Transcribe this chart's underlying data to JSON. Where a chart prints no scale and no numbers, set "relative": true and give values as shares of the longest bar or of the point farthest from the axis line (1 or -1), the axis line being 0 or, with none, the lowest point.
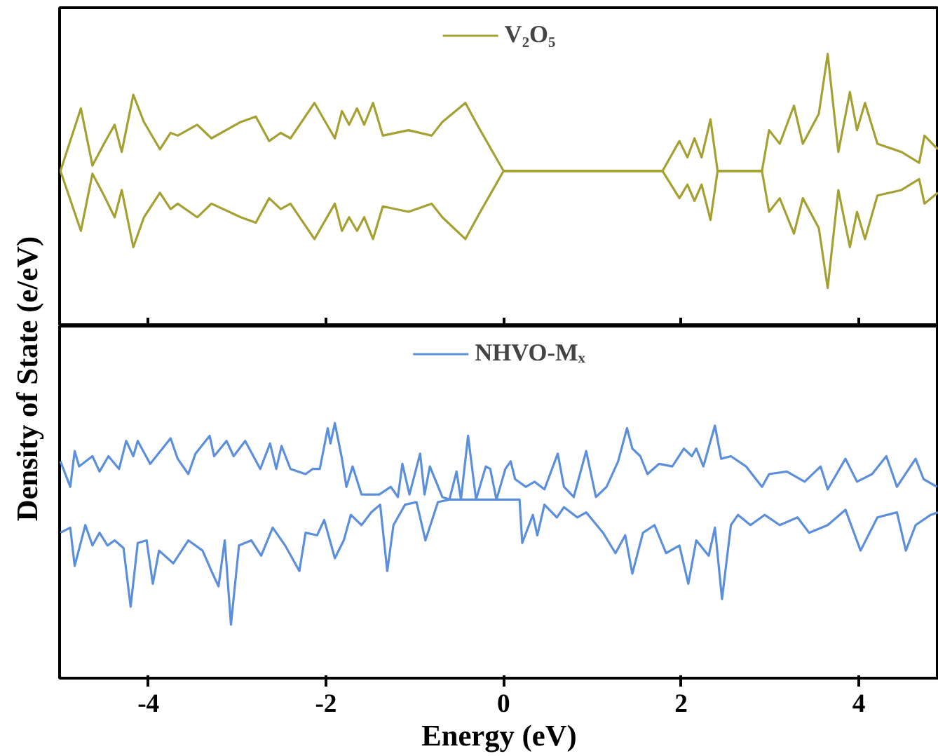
{
  "chart_data": [
    {
      "type": "line",
      "relative": true,
      "ylabel": "Density of State (e/eV)",
      "xlim": [
        -5,
        4.9
      ],
      "xticks": [
        -4,
        -2,
        0,
        2,
        4
      ],
      "tick_labels": false,
      "legend": "top",
      "series": [
        {
          "name": "V₂O₅",
          "color": "#a5a032",
          "x": [
            -4.99,
            -4.76,
            -4.63,
            -4.5,
            -4.38,
            -4.3,
            -4.17,
            -4.05,
            -3.87,
            -3.75,
            -3.67,
            -3.45,
            -3.29,
            -2.96,
            -2.79,
            -2.64,
            -2.51,
            -2.4,
            -2.13,
            -1.9,
            -1.82,
            -1.74,
            -1.65,
            -1.57,
            -1.47,
            -1.36,
            -1.07,
            -0.81,
            -0.69,
            -0.43,
            -0.28,
            0,
            1.79,
            1.98,
            2.07,
            2.15,
            2.23,
            2.33,
            2.41,
            2.91,
            2.99,
            3.11,
            3.27,
            3.37,
            3.55,
            3.65,
            3.77,
            3.9,
            3.98,
            4.07,
            4.21,
            4.48,
            4.68,
            4.74,
            4.89
          ],
          "values": [
            0.57,
            0.8,
            0.59,
            0.67,
            0.74,
            0.64,
            0.85,
            0.75,
            0.65,
            0.71,
            0.7,
            0.74,
            0.69,
            0.75,
            0.77,
            0.68,
            0.71,
            0.69,
            0.82,
            0.69,
            0.79,
            0.74,
            0.8,
            0.74,
            0.82,
            0.7,
            0.72,
            0.7,
            0.75,
            0.82,
            0.73,
            0.57,
            0.57,
            0.68,
            0.62,
            0.69,
            0.62,
            0.76,
            0.57,
            0.57,
            0.72,
            0.67,
            0.81,
            0.67,
            0.78,
            1,
            0.64,
            0.86,
            0.72,
            0.82,
            0.67,
            0.64,
            0.6,
            0.7,
            0.65
          ]
        },
        {
          "color": "#a5a032",
          "x": [
            -4.99,
            -4.76,
            -4.63,
            -4.5,
            -4.38,
            -4.3,
            -4.17,
            -4.05,
            -3.87,
            -3.75,
            -3.67,
            -3.45,
            -3.29,
            -2.96,
            -2.79,
            -2.64,
            -2.51,
            -2.4,
            -2.13,
            -1.9,
            -1.82,
            -1.74,
            -1.65,
            -1.57,
            -1.47,
            -1.36,
            -1.07,
            -0.81,
            -0.69,
            -0.43,
            -0.28,
            0,
            1.79,
            1.98,
            2.07,
            2.15,
            2.23,
            2.33,
            2.41,
            2.91,
            2.99,
            3.11,
            3.27,
            3.37,
            3.55,
            3.65,
            3.77,
            3.9,
            3.98,
            4.07,
            4.21,
            4.48,
            4.68,
            4.74,
            4.89
          ],
          "values": [
            0.57,
            0.35,
            0.56,
            0.48,
            0.4,
            0.5,
            0.29,
            0.4,
            0.49,
            0.43,
            0.45,
            0.4,
            0.45,
            0.4,
            0.38,
            0.47,
            0.43,
            0.45,
            0.32,
            0.45,
            0.35,
            0.4,
            0.35,
            0.4,
            0.32,
            0.44,
            0.42,
            0.45,
            0.4,
            0.32,
            0.41,
            0.57,
            0.57,
            0.47,
            0.52,
            0.46,
            0.52,
            0.39,
            0.57,
            0.57,
            0.42,
            0.47,
            0.34,
            0.47,
            0.36,
            0.14,
            0.5,
            0.29,
            0.42,
            0.32,
            0.48,
            0.5,
            0.54,
            0.45,
            0.49
          ]
        }
      ]
    },
    {
      "type": "line",
      "relative": true,
      "xlabel": "Energy (eV)",
      "xlim": [
        -5,
        4.9
      ],
      "xticks": [
        -4,
        -2,
        0,
        2,
        4
      ],
      "tick_labels": "x",
      "legend": "top",
      "series": [
        {
          "name": "NHVO-Mₓ",
          "color": "#5b8fdb",
          "x": [
            -4.99,
            -4.88,
            -4.83,
            -4.78,
            -4.63,
            -4.55,
            -4.45,
            -4.33,
            -4.25,
            -4.17,
            -4.12,
            -3.98,
            -3.75,
            -3.67,
            -3.55,
            -3.47,
            -3.31,
            -3.26,
            -3.12,
            -3.04,
            -2.91,
            -2.74,
            -2.63,
            -2.56,
            -2.5,
            -2.4,
            -2.23,
            -2.15,
            -2.07,
            -1.98,
            -1.95,
            -1.9,
            -1.82,
            -1.77,
            -1.7,
            -1.6,
            -1.4,
            -1.27,
            -1.19,
            -1.14,
            -1.06,
            -0.94,
            -0.89,
            -0.83,
            -0.69,
            -0.61,
            -0.53,
            -0.48,
            -0.4,
            -0.31,
            -0.2,
            -0.15,
            -0.08,
            0.02,
            0.08,
            0.13,
            0.25,
            0.35,
            0.46,
            0.61,
            0.68,
            0.79,
            0.93,
            1.04,
            1.16,
            1.29,
            1.39,
            1.45,
            1.54,
            1.62,
            1.75,
            1.9,
            2.03,
            2.12,
            2.17,
            2.25,
            2.38,
            2.45,
            2.56,
            2.73,
            2.91,
            2.99,
            3.19,
            3.39,
            3.57,
            3.65,
            3.85,
            3.98,
            4.15,
            4.31,
            4.43,
            4.64,
            4.73,
            4.88
          ],
          "values": [
            0.85,
            0.75,
            0.89,
            0.83,
            0.87,
            0.81,
            0.87,
            0.82,
            0.93,
            0.87,
            0.93,
            0.84,
            0.94,
            0.86,
            0.8,
            0.88,
            0.95,
            0.87,
            0.93,
            0.87,
            0.93,
            0.82,
            0.92,
            0.82,
            0.91,
            0.82,
            0.8,
            0.82,
            0.82,
            0.98,
            0.92,
            1,
            0.86,
            0.75,
            0.83,
            0.72,
            0.72,
            0.75,
            0.71,
            0.84,
            0.72,
            0.88,
            0.72,
            0.83,
            0.71,
            0.7,
            0.81,
            0.7,
            0.95,
            0.7,
            0.83,
            0.82,
            0.7,
            0.82,
            0.85,
            0.78,
            0.75,
            0.77,
            0.74,
            0.88,
            0.75,
            0.71,
            0.89,
            0.71,
            0.75,
            0.85,
            0.98,
            0.9,
            0.87,
            0.8,
            0.84,
            0.83,
            0.9,
            0.87,
            0.9,
            0.83,
            0.99,
            0.86,
            0.87,
            0.83,
            0.75,
            0.8,
            0.81,
            0.77,
            0.83,
            0.74,
            0.86,
            0.77,
            0.8,
            0.87,
            0.75,
            0.86,
            0.78,
            0.75
          ]
        },
        {
          "color": "#5b8fdb",
          "x": [
            -4.99,
            -4.88,
            -4.83,
            -4.71,
            -4.63,
            -4.55,
            -4.46,
            -4.38,
            -4.28,
            -4.2,
            -4.12,
            -4.02,
            -3.95,
            -3.88,
            -3.72,
            -3.55,
            -3.39,
            -3.29,
            -3.21,
            -3.14,
            -3.07,
            -2.98,
            -2.84,
            -2.73,
            -2.6,
            -2.46,
            -2.3,
            -2.23,
            -2.1,
            -2.02,
            -1.9,
            -1.8,
            -1.72,
            -1.6,
            -1.49,
            -1.39,
            -1.31,
            -1.24,
            -1.11,
            -0.98,
            -0.88,
            -0.74,
            -0.61,
            0.18,
            0.21,
            0.33,
            0.38,
            0.46,
            0.6,
            0.68,
            0.83,
            0.93,
            1.12,
            1.26,
            1.37,
            1.45,
            1.57,
            1.7,
            1.83,
            1.98,
            2.08,
            2.17,
            2.31,
            2.38,
            2.46,
            2.56,
            2.64,
            2.78,
            2.94,
            3.11,
            3.31,
            3.44,
            3.65,
            3.85,
            4.02,
            4.21,
            4.43,
            4.53,
            4.64,
            4.81,
            4.89
          ],
          "values": [
            0.57,
            0.59,
            0.44,
            0.6,
            0.52,
            0.57,
            0.52,
            0.54,
            0.51,
            0.28,
            0.53,
            0.54,
            0.37,
            0.5,
            0.45,
            0.54,
            0.5,
            0.42,
            0.36,
            0.54,
            0.21,
            0.52,
            0.54,
            0.48,
            0.59,
            0.52,
            0.42,
            0.57,
            0.56,
            0.62,
            0.47,
            0.54,
            0.64,
            0.6,
            0.65,
            0.68,
            0.42,
            0.6,
            0.68,
            0.69,
            0.54,
            0.69,
            0.7,
            0.7,
            0.53,
            0.64,
            0.56,
            0.68,
            0.63,
            0.67,
            0.63,
            0.65,
            0.57,
            0.49,
            0.56,
            0.41,
            0.57,
            0.6,
            0.49,
            0.52,
            0.37,
            0.54,
            0.48,
            0.59,
            0.31,
            0.6,
            0.64,
            0.6,
            0.64,
            0.6,
            0.63,
            0.57,
            0.6,
            0.66,
            0.5,
            0.63,
            0.65,
            0.5,
            0.6,
            0.64,
            0.65
          ]
        }
      ]
    }
  ]
}
